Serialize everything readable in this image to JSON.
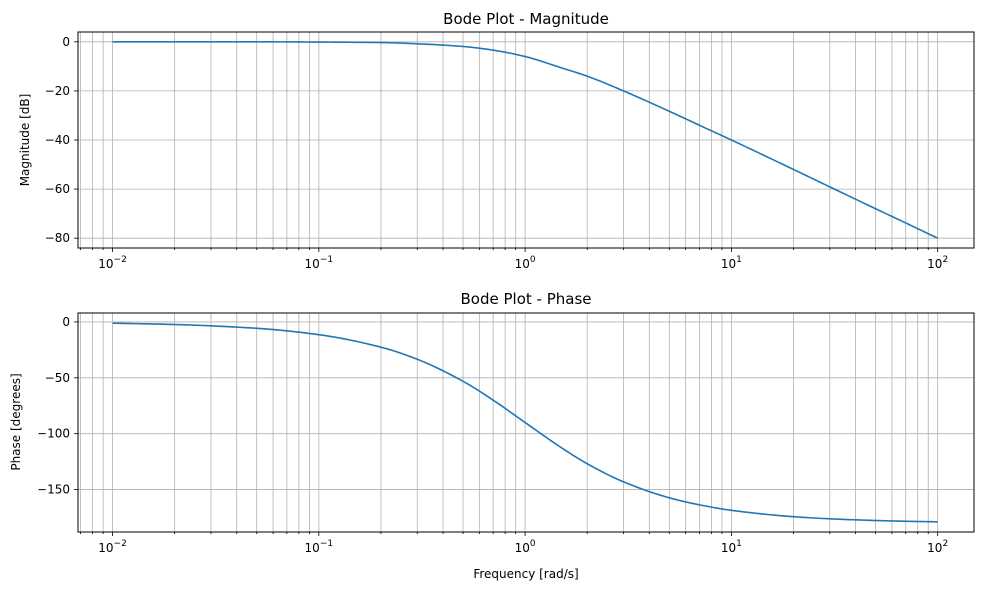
{
  "chart_data": [
    {
      "type": "line",
      "title": "Bode Plot - Magnitude",
      "xlabel": "",
      "ylabel": "Magnitude [dB]",
      "xscale": "log",
      "xlim": [
        0.0068,
        150
      ],
      "ylim": [
        -84,
        4
      ],
      "yticks": [
        0,
        -20,
        -40,
        -60,
        -80
      ],
      "grid": true,
      "color": "#1f77b4",
      "series": [
        {
          "x": [
            0.01,
            0.02,
            0.05,
            0.1,
            0.2,
            0.3,
            0.5,
            0.7,
            1,
            1.5,
            2,
            3,
            5,
            7,
            10,
            20,
            30,
            50,
            70,
            100
          ],
          "values": [
            0,
            0,
            0,
            -0.1,
            -0.3,
            -0.8,
            -1.9,
            -3.4,
            -6,
            -10.6,
            -14,
            -20,
            -28.3,
            -34,
            -40,
            -52,
            -59.1,
            -68,
            -73.8,
            -80
          ]
        }
      ]
    },
    {
      "type": "line",
      "title": "Bode Plot - Phase",
      "xlabel": "Frequency [rad/s]",
      "ylabel": "Phase [degrees]",
      "xscale": "log",
      "xlim": [
        0.0068,
        150
      ],
      "ylim": [
        -188,
        8
      ],
      "yticks": [
        0,
        -50,
        -100,
        -150
      ],
      "grid": true,
      "color": "#1f77b4",
      "series": [
        {
          "x": [
            0.01,
            0.02,
            0.05,
            0.1,
            0.2,
            0.3,
            0.5,
            0.7,
            1,
            1.5,
            2,
            3,
            5,
            7,
            10,
            20,
            30,
            50,
            70,
            100
          ],
          "values": [
            -1.1,
            -2.3,
            -5.7,
            -11.4,
            -22.6,
            -33.4,
            -53.1,
            -70.0,
            -90,
            -112.6,
            -126.9,
            -143.1,
            -157.4,
            -163.7,
            -168.6,
            -174.3,
            -176.2,
            -177.7,
            -178.4,
            -178.9
          ]
        }
      ]
    }
  ]
}
